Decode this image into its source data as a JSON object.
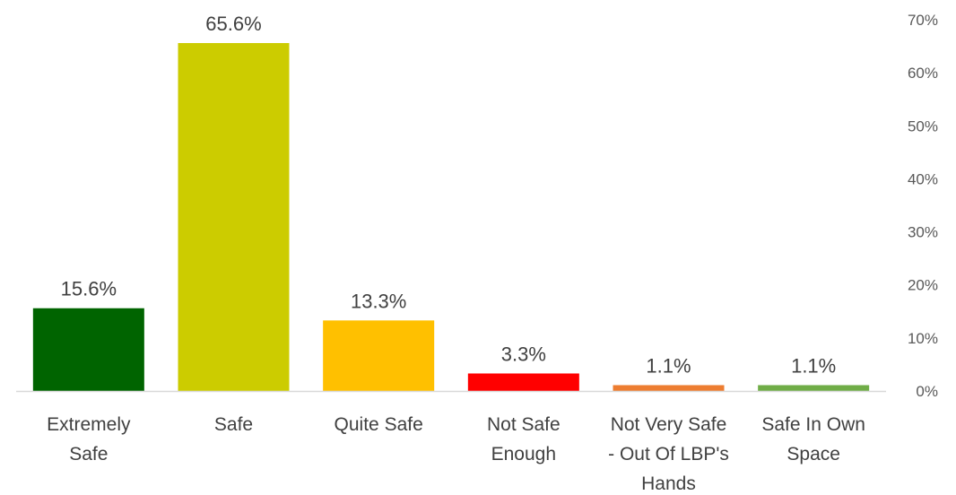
{
  "chart_data": {
    "type": "bar",
    "categories": [
      [
        "Extremely",
        "Safe"
      ],
      [
        "Safe"
      ],
      [
        "Quite Safe"
      ],
      [
        "Not Safe",
        "Enough"
      ],
      [
        "Not Very Safe",
        "- Out Of LBP's",
        "Hands"
      ],
      [
        "Safe In Own",
        "Space"
      ]
    ],
    "values": [
      15.6,
      65.6,
      13.3,
      3.3,
      1.1,
      1.1
    ],
    "data_labels": [
      "15.6%",
      "65.6%",
      "13.3%",
      "3.3%",
      "1.1%",
      "1.1%"
    ],
    "colors": [
      "#006400",
      "#CCCC00",
      "#FFC000",
      "#FF0000",
      "#ED7D31",
      "#70AD47"
    ],
    "ylim": [
      0,
      70
    ],
    "yticks": [
      0,
      10,
      20,
      30,
      40,
      50,
      60,
      70
    ],
    "ytick_labels": [
      "0%",
      "10%",
      "20%",
      "30%",
      "40%",
      "50%",
      "60%",
      "70%"
    ],
    "y_axis_position": "right",
    "grid": false,
    "legend": "none",
    "title": "",
    "xlabel": "",
    "ylabel": ""
  }
}
